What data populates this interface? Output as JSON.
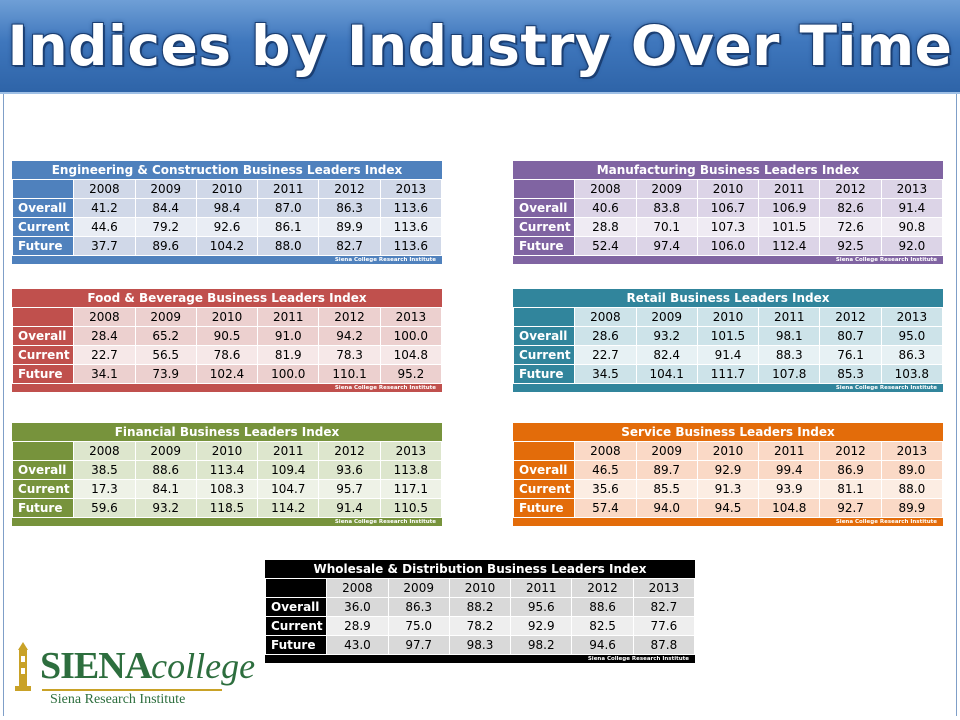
{
  "title": "Indices by Industry Over Time",
  "footnote": "Siena College Research Institute",
  "years": [
    "2008",
    "2009",
    "2010",
    "2011",
    "2012",
    "2013"
  ],
  "row_labels": [
    "Overall",
    "Current",
    "Future"
  ],
  "tables": [
    {
      "title": "Engineering & Construction Business Leaders Index",
      "color": "#4f81bd",
      "rows": [
        [
          "41.2",
          "84.4",
          "98.4",
          "87.0",
          "86.3",
          "113.6"
        ],
        [
          "44.6",
          "79.2",
          "92.6",
          "86.1",
          "89.9",
          "113.6"
        ],
        [
          "37.7",
          "89.6",
          "104.2",
          "88.0",
          "82.7",
          "113.6"
        ]
      ]
    },
    {
      "title": "Manufacturing Business Leaders Index",
      "color": "#8064a2",
      "rows": [
        [
          "40.6",
          "83.8",
          "106.7",
          "106.9",
          "82.6",
          "91.4"
        ],
        [
          "28.8",
          "70.1",
          "107.3",
          "101.5",
          "72.6",
          "90.8"
        ],
        [
          "52.4",
          "97.4",
          "106.0",
          "112.4",
          "92.5",
          "92.0"
        ]
      ]
    },
    {
      "title": "Food & Beverage Business Leaders Index",
      "color": "#c0504d",
      "rows": [
        [
          "28.4",
          "65.2",
          "90.5",
          "91.0",
          "94.2",
          "100.0"
        ],
        [
          "22.7",
          "56.5",
          "78.6",
          "81.9",
          "78.3",
          "104.8"
        ],
        [
          "34.1",
          "73.9",
          "102.4",
          "100.0",
          "110.1",
          "95.2"
        ]
      ]
    },
    {
      "title": "Retail Business Leaders Index",
      "color": "#31859c",
      "rows": [
        [
          "28.6",
          "93.2",
          "101.5",
          "98.1",
          "80.7",
          "95.0"
        ],
        [
          "22.7",
          "82.4",
          "91.4",
          "88.3",
          "76.1",
          "86.3"
        ],
        [
          "34.5",
          "104.1",
          "111.7",
          "107.8",
          "85.3",
          "103.8"
        ]
      ]
    },
    {
      "title": "Financial Business Leaders Index",
      "color": "#77933c",
      "rows": [
        [
          "38.5",
          "88.6",
          "113.4",
          "109.4",
          "93.6",
          "113.8"
        ],
        [
          "17.3",
          "84.1",
          "108.3",
          "104.7",
          "95.7",
          "117.1"
        ],
        [
          "59.6",
          "93.2",
          "118.5",
          "114.2",
          "91.4",
          "110.5"
        ]
      ]
    },
    {
      "title": "Service Business Leaders Index",
      "color": "#e36c0a",
      "rows": [
        [
          "46.5",
          "89.7",
          "92.9",
          "99.4",
          "86.9",
          "89.0"
        ],
        [
          "35.6",
          "85.5",
          "91.3",
          "93.9",
          "81.1",
          "88.0"
        ],
        [
          "57.4",
          "94.0",
          "94.5",
          "104.8",
          "92.7",
          "89.9"
        ]
      ]
    },
    {
      "title": "Wholesale & Distribution Business Leaders Index",
      "color": "#000000",
      "rows": [
        [
          "36.0",
          "86.3",
          "88.2",
          "95.6",
          "88.6",
          "82.7"
        ],
        [
          "28.9",
          "75.0",
          "78.2",
          "92.9",
          "82.5",
          "77.6"
        ],
        [
          "43.0",
          "97.7",
          "98.3",
          "98.2",
          "94.6",
          "87.8"
        ]
      ]
    }
  ],
  "logo": {
    "name_main": "SIENA",
    "name_sub": "college",
    "tagline": "Siena Research Institute"
  }
}
